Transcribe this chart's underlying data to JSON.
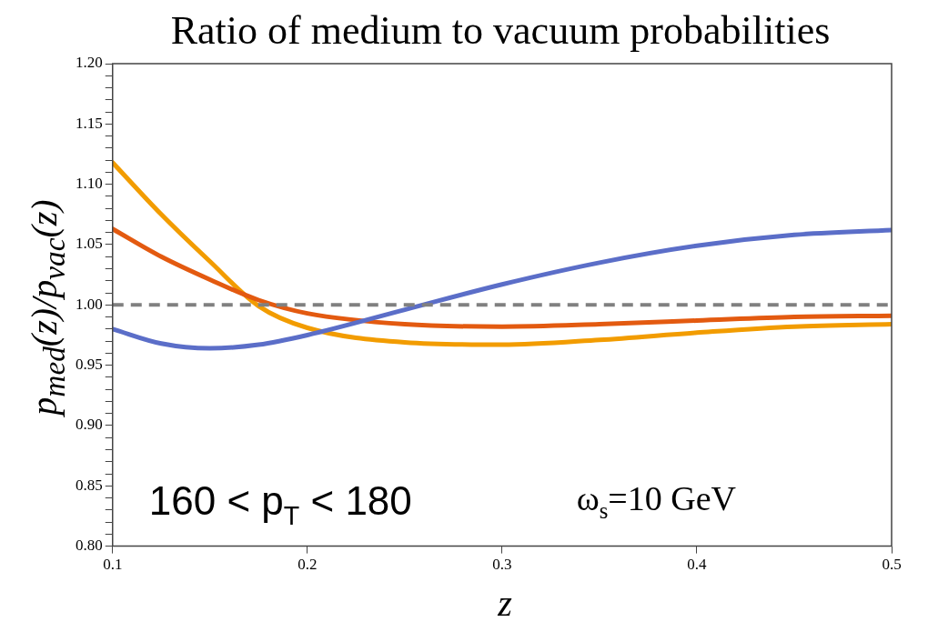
{
  "chart_data": {
    "type": "line",
    "title": "Ratio of medium to vacuum probabilities",
    "xlabel": "z",
    "ylabel": "p$_{med}$(z)/p$_{vac}$(z)",
    "x": [
      0.1,
      0.125,
      0.15,
      0.175,
      0.2,
      0.25,
      0.3,
      0.35,
      0.4,
      0.45,
      0.5
    ],
    "series": [
      {
        "color": "#5b6ec8",
        "values": [
          0.98,
          0.968,
          0.964,
          0.967,
          0.975,
          0.996,
          1.017,
          1.035,
          1.049,
          1.058,
          1.062
        ]
      },
      {
        "color": "#e35a10",
        "values": [
          1.063,
          1.04,
          1.021,
          1.004,
          0.993,
          0.984,
          0.982,
          0.984,
          0.987,
          0.99,
          0.991
        ]
      },
      {
        "color": "#f29c00",
        "values": [
          1.118,
          1.075,
          1.036,
          0.999,
          0.981,
          0.969,
          0.967,
          0.971,
          0.977,
          0.982,
          0.984
        ]
      }
    ],
    "xlim": [
      0.1,
      0.5
    ],
    "xticks": [
      0.1,
      0.2,
      0.3,
      0.4,
      0.5
    ],
    "ylim": [
      0.8,
      1.2
    ],
    "yticks": [
      {
        "value": 0.8,
        "label": "0.80"
      },
      {
        "value": 0.81,
        "label": null
      },
      {
        "value": 0.82,
        "label": null
      },
      {
        "value": 0.83,
        "label": null
      },
      {
        "value": 0.84,
        "label": null
      },
      {
        "value": 0.85,
        "label": "0.85"
      },
      {
        "value": 0.86,
        "label": null
      },
      {
        "value": 0.87,
        "label": null
      },
      {
        "value": 0.88,
        "label": null
      },
      {
        "value": 0.89,
        "label": null
      },
      {
        "value": 0.9,
        "label": "0.90"
      },
      {
        "value": 0.91,
        "label": null
      },
      {
        "value": 0.92,
        "label": null
      },
      {
        "value": 0.93,
        "label": null
      },
      {
        "value": 0.94,
        "label": null
      },
      {
        "value": 0.95,
        "label": "0.95"
      },
      {
        "value": 0.96,
        "label": null
      },
      {
        "value": 0.97,
        "label": null
      },
      {
        "value": 0.98,
        "label": null
      },
      {
        "value": 0.99,
        "label": null
      },
      {
        "value": 1.0,
        "label": "1.00"
      },
      {
        "value": 1.01,
        "label": null
      },
      {
        "value": 1.02,
        "label": null
      },
      {
        "value": 1.03,
        "label": null
      },
      {
        "value": 1.04,
        "label": null
      },
      {
        "value": 1.05,
        "label": "1.05"
      },
      {
        "value": 1.06,
        "label": null
      },
      {
        "value": 1.07,
        "label": null
      },
      {
        "value": 1.08,
        "label": null
      },
      {
        "value": 1.09,
        "label": null
      },
      {
        "value": 1.1,
        "label": "1.10"
      },
      {
        "value": 1.11,
        "label": null
      },
      {
        "value": 1.12,
        "label": null
      },
      {
        "value": 1.13,
        "label": null
      },
      {
        "value": 1.14,
        "label": null
      },
      {
        "value": 1.15,
        "label": "1.15"
      },
      {
        "value": 1.16,
        "label": null
      },
      {
        "value": 1.17,
        "label": null
      },
      {
        "value": 1.18,
        "label": null
      },
      {
        "value": 1.19,
        "label": null
      },
      {
        "value": 1.2,
        "label": "1.20"
      }
    ],
    "ref_lines": [
      {
        "axis": "y",
        "value": 1.0,
        "color": "#808080",
        "line_style": "dashed"
      }
    ],
    "annotations": [
      "160 < p$_{T}$ < 180",
      "ω$_{s}$=10 GeV"
    ],
    "grid": false,
    "legend": false,
    "marker": "none",
    "line_style": "solid"
  }
}
